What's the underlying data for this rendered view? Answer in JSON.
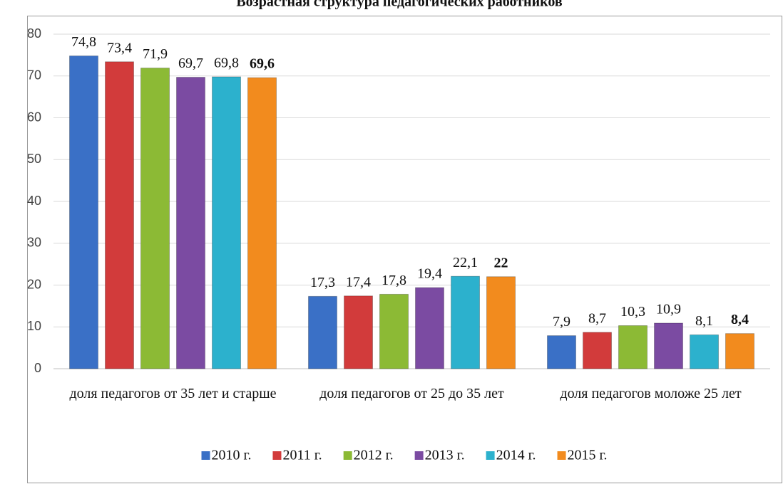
{
  "chart_data": {
    "type": "bar",
    "title": "Возрастная структура педагогических работников",
    "categories": [
      "доля педагогов от 35 лет и старше",
      "доля педагогов от 25 до 35 лет",
      "доля педагогов моложе 25 лет"
    ],
    "series": [
      {
        "name": "2010 г.",
        "color": "#3a70c6",
        "values": [
          74.8,
          17.3,
          7.9
        ],
        "value_labels": [
          "74,8",
          "17,3",
          "7,9"
        ]
      },
      {
        "name": "2011 г.",
        "color": "#d23b3b",
        "values": [
          73.4,
          17.4,
          8.7
        ],
        "value_labels": [
          "73,4",
          "17,4",
          "8,7"
        ]
      },
      {
        "name": "2012 г.",
        "color": "#8cba35",
        "values": [
          71.9,
          17.8,
          10.3
        ],
        "value_labels": [
          "71,9",
          "17,8",
          "10,3"
        ]
      },
      {
        "name": "2013 г.",
        "color": "#7b4ba2",
        "values": [
          69.7,
          19.4,
          10.9
        ],
        "value_labels": [
          "69,7",
          "19,4",
          "10,9"
        ]
      },
      {
        "name": "2014 г.",
        "color": "#2cb1cd",
        "values": [
          69.8,
          22.1,
          8.1
        ],
        "value_labels": [
          "69,8",
          "22,1",
          "8,1"
        ]
      },
      {
        "name": "2015 г.",
        "color": "#f28b1e",
        "values": [
          69.6,
          22,
          8.4
        ],
        "value_labels": [
          "69,6",
          "22",
          "8,4"
        ],
        "label_weight": "bold"
      }
    ],
    "ylim": [
      0,
      80
    ],
    "yticks": [
      0,
      10,
      20,
      30,
      40,
      50,
      60,
      70,
      80
    ],
    "grid": true,
    "legend": "bottom"
  }
}
